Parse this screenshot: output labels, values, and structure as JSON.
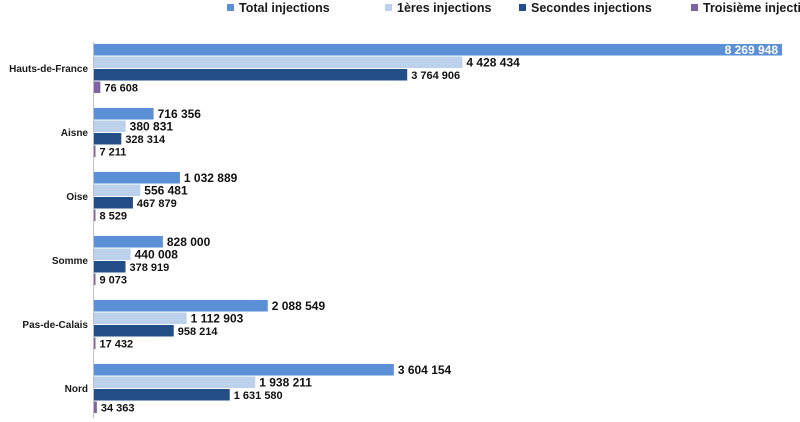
{
  "chart_data": {
    "type": "bar",
    "orientation": "horizontal",
    "categories": [
      "Hauts-de-France",
      "Aisne",
      "Oise",
      "Somme",
      "Pas-de-Calais",
      "Nord"
    ],
    "series": [
      {
        "name": "Total injections",
        "color": "#5b8fd6",
        "values": [
          8269948,
          716356,
          1032889,
          828000,
          2088549,
          3604154
        ],
        "labels": [
          "8 269 948",
          "716 356",
          "1 032 889",
          "828 000",
          "2 088 549",
          "3 604 154"
        ]
      },
      {
        "name": "1ères injections",
        "color": "#bcd1ec",
        "values": [
          4428434,
          380831,
          556481,
          440008,
          1112903,
          1938211
        ],
        "labels": [
          "4 428 434",
          "380 831",
          "556 481",
          "440 008",
          "1 112 903",
          "1 938 211"
        ]
      },
      {
        "name": "Secondes injections",
        "color": "#234d86",
        "values": [
          3764906,
          328314,
          467879,
          378919,
          958214,
          1631580
        ],
        "labels": [
          "3 764 906",
          "328 314",
          "467 879",
          "378 919",
          "958 214",
          "1 631 580"
        ]
      },
      {
        "name": "Troisième injections",
        "color": "#8064a2",
        "values": [
          76608,
          7211,
          8529,
          9073,
          17432,
          34363
        ],
        "labels": [
          "76 608",
          "7 211",
          "8 529",
          "9 073",
          "17 432",
          "34 363"
        ]
      }
    ],
    "legend_position": "top",
    "xlim": [
      0,
      8269948
    ],
    "grid": false,
    "axis_line": "left"
  }
}
